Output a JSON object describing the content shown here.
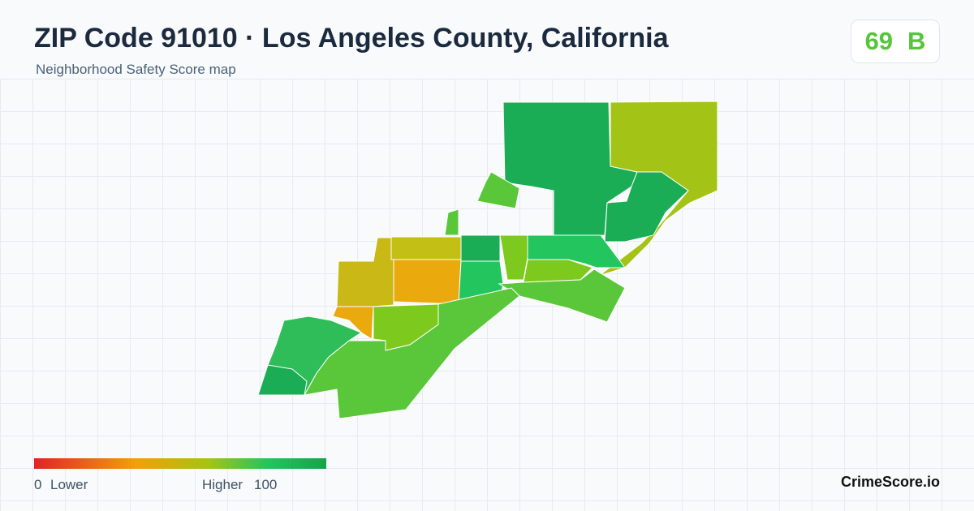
{
  "header": {
    "title": "ZIP Code 91010 · Los Angeles County, California",
    "subtitle": "Neighborhood Safety Score map"
  },
  "score": {
    "value": 69,
    "grade": "B"
  },
  "legend": {
    "min": 0,
    "min_label": "Lower",
    "max_label": "Higher",
    "max": 100
  },
  "brand": "CrimeScore.io"
}
